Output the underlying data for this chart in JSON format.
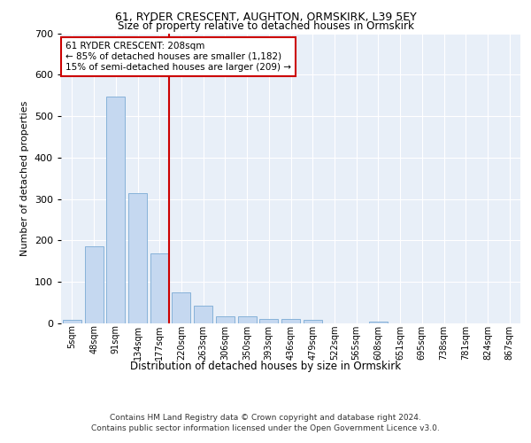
{
  "title_line1": "61, RYDER CRESCENT, AUGHTON, ORMSKIRK, L39 5EY",
  "title_line2": "Size of property relative to detached houses in Ormskirk",
  "xlabel": "Distribution of detached houses by size in Ormskirk",
  "ylabel": "Number of detached properties",
  "bar_labels": [
    "5sqm",
    "48sqm",
    "91sqm",
    "134sqm",
    "177sqm",
    "220sqm",
    "263sqm",
    "306sqm",
    "350sqm",
    "393sqm",
    "436sqm",
    "479sqm",
    "522sqm",
    "565sqm",
    "608sqm",
    "651sqm",
    "695sqm",
    "738sqm",
    "781sqm",
    "824sqm",
    "867sqm"
  ],
  "bar_values": [
    8,
    187,
    547,
    314,
    168,
    75,
    42,
    18,
    18,
    11,
    11,
    8,
    0,
    0,
    5,
    0,
    0,
    0,
    0,
    0,
    0
  ],
  "bar_color": "#c5d8f0",
  "bar_edge_color": "#7aaad4",
  "bg_color": "#e8eff8",
  "grid_color": "#ffffff",
  "vline_color": "#cc0000",
  "annotation_text": "61 RYDER CRESCENT: 208sqm\n← 85% of detached houses are smaller (1,182)\n15% of semi-detached houses are larger (209) →",
  "footer_line1": "Contains HM Land Registry data © Crown copyright and database right 2024.",
  "footer_line2": "Contains public sector information licensed under the Open Government Licence v3.0.",
  "ylim": [
    0,
    700
  ],
  "yticks": [
    0,
    100,
    200,
    300,
    400,
    500,
    600,
    700
  ],
  "vline_pos": 4.43
}
